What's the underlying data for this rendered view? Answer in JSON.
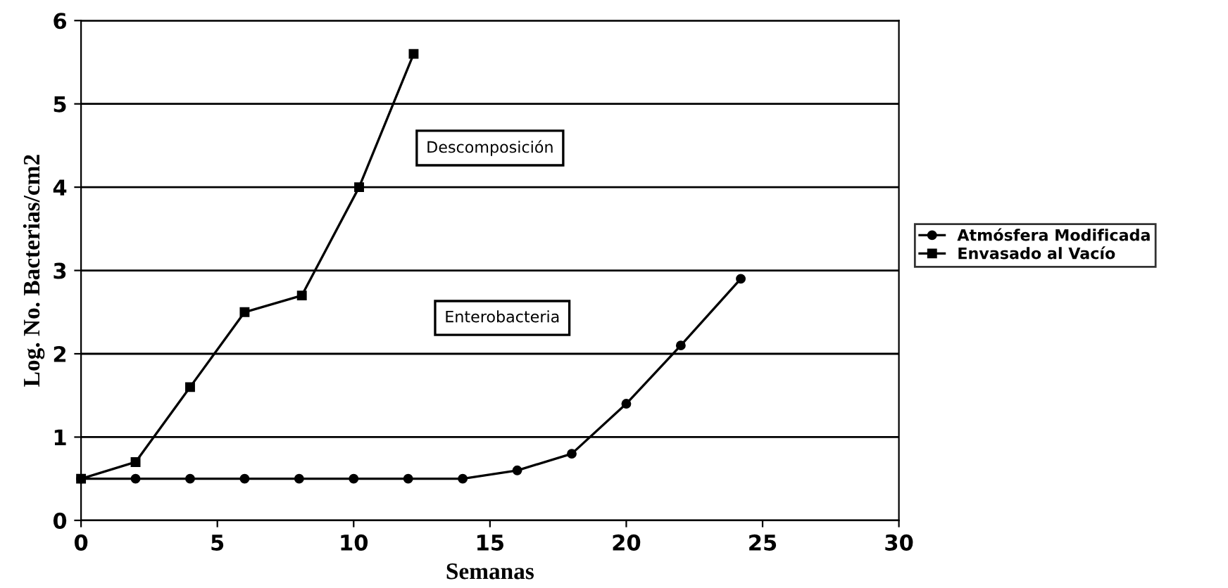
{
  "chart_data": {
    "type": "line",
    "xlabel": "Semanas",
    "ylabel": "Log. No. Bacterias/cm2",
    "xlim": [
      0,
      30
    ],
    "xticks": [
      0,
      5,
      10,
      15,
      20,
      25,
      30
    ],
    "ylim": [
      0,
      6
    ],
    "yticks": [
      0,
      1,
      2,
      3,
      4,
      5,
      6
    ],
    "grid": "y",
    "legend": "right",
    "annotations": [
      "Descomposición",
      "Enterobacteria"
    ],
    "series": [
      {
        "name": "Atmósfera Modificada",
        "color": "#000000",
        "marker": "circle",
        "x": [
          0,
          2,
          4,
          6,
          8,
          10,
          12,
          14,
          16,
          18,
          20,
          22,
          24.2
        ],
        "values": [
          0.5,
          0.5,
          0.5,
          0.5,
          0.5,
          0.5,
          0.5,
          0.5,
          0.6,
          0.8,
          1.4,
          2.1,
          2.9
        ]
      },
      {
        "name": "Envasado al Vacío",
        "color": "#000000",
        "marker": "square",
        "x": [
          0,
          2,
          4,
          6,
          8.1,
          10.2,
          12.2
        ],
        "values": [
          0.5,
          0.7,
          1.6,
          2.5,
          2.7,
          4.0,
          5.6
        ]
      }
    ]
  }
}
